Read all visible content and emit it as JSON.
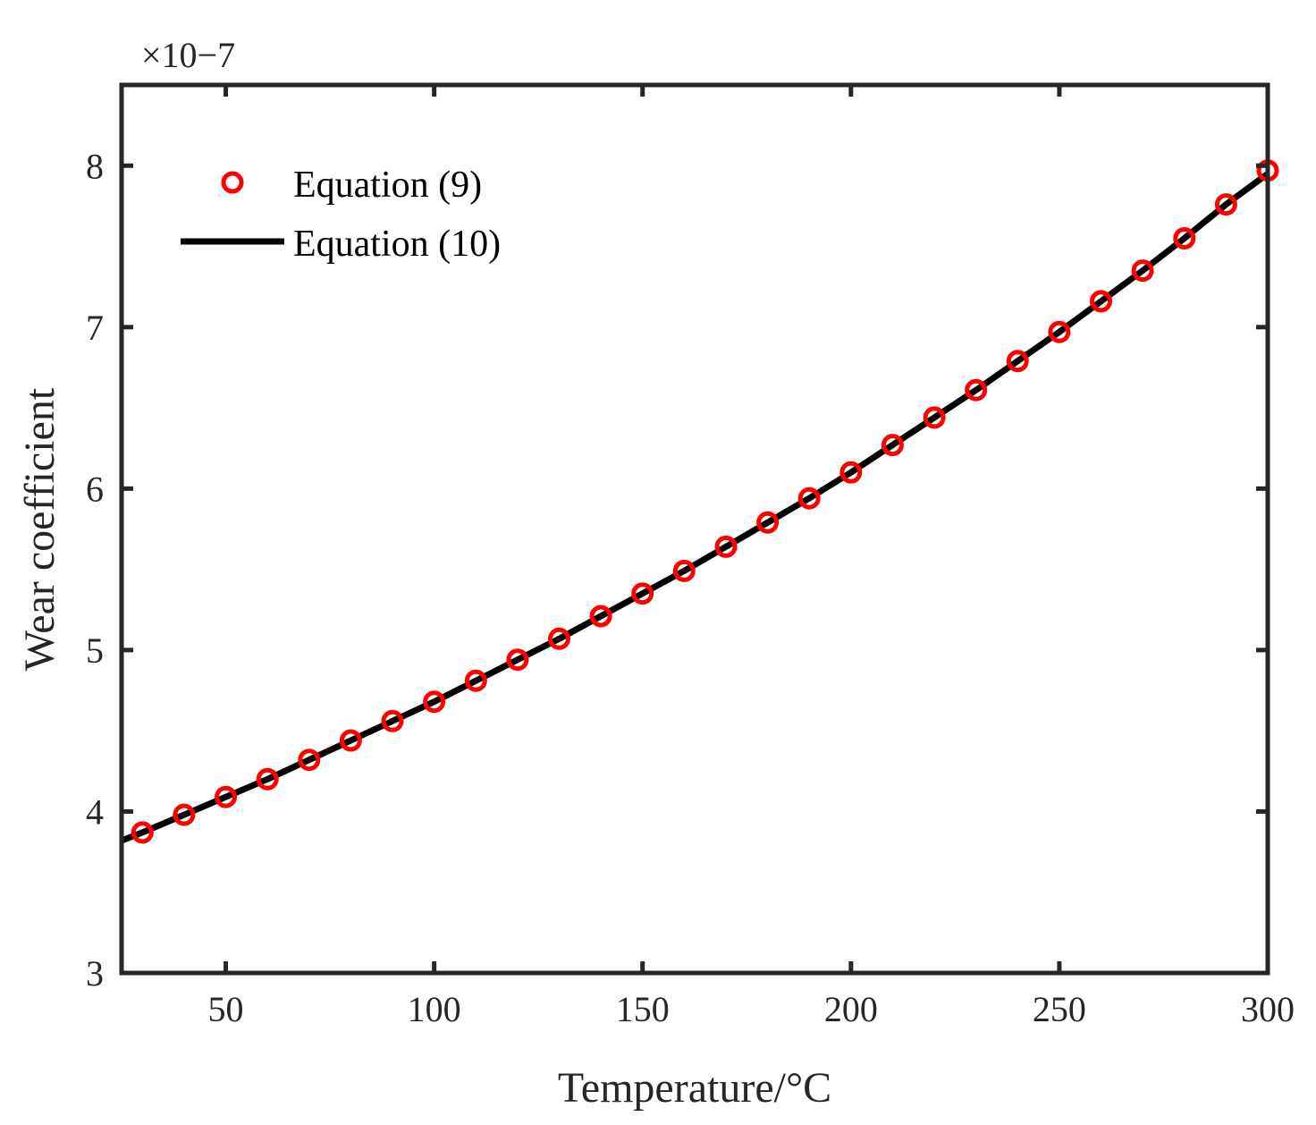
{
  "chart_data": {
    "type": "line",
    "xlabel": "Temperature/°C",
    "ylabel": "Wear coefficient",
    "y_exponent_label": "×10−7",
    "y_multiplier_exponent": -7,
    "xlim": [
      25,
      300
    ],
    "ylim": [
      3,
      8.5
    ],
    "xticks": [
      50,
      100,
      150,
      200,
      250,
      300
    ],
    "yticks": [
      3,
      4,
      5,
      6,
      7,
      8
    ],
    "grid": false,
    "legend_position": "top-left",
    "series": [
      {
        "name": "Equation (9)",
        "kind": "markers",
        "marker": "circle-open",
        "color": "#ff0000",
        "x": [
          30,
          40,
          50,
          60,
          70,
          80,
          90,
          100,
          110,
          120,
          130,
          140,
          150,
          160,
          170,
          180,
          190,
          200,
          210,
          220,
          230,
          240,
          250,
          260,
          270,
          280,
          290,
          300
        ],
        "y": [
          3.87,
          3.98,
          4.09,
          4.2,
          4.32,
          4.44,
          4.56,
          4.68,
          4.81,
          4.94,
          5.07,
          5.21,
          5.35,
          5.49,
          5.64,
          5.79,
          5.94,
          6.1,
          6.27,
          6.44,
          6.61,
          6.79,
          6.97,
          7.16,
          7.35,
          7.55,
          7.76,
          7.97
        ]
      },
      {
        "name": "Equation (10)",
        "kind": "line",
        "color": "#000000",
        "x": [
          25,
          30,
          40,
          50,
          60,
          70,
          80,
          90,
          100,
          110,
          120,
          130,
          140,
          150,
          160,
          170,
          180,
          190,
          200,
          210,
          220,
          230,
          240,
          250,
          260,
          270,
          280,
          290,
          300
        ],
        "y": [
          3.82,
          3.87,
          3.98,
          4.09,
          4.2,
          4.32,
          4.44,
          4.56,
          4.68,
          4.81,
          4.94,
          5.07,
          5.21,
          5.35,
          5.49,
          5.64,
          5.79,
          5.94,
          6.1,
          6.27,
          6.44,
          6.61,
          6.79,
          6.97,
          7.16,
          7.35,
          7.55,
          7.76,
          7.95
        ]
      }
    ]
  }
}
